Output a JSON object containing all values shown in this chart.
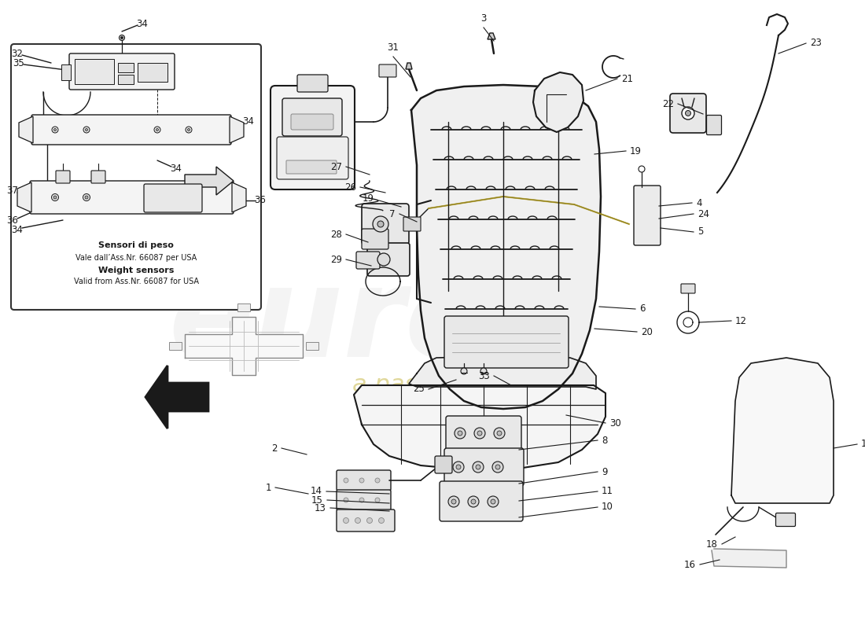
{
  "bg": "#ffffff",
  "lc": "#1a1a1a",
  "inset_texts": [
    "Sensori di peso",
    "Vale dall’Ass.Nr. 66087 per USA",
    "Weight sensors",
    "Valid from Ass.Nr. 66087 for USA"
  ],
  "wm_color": "#e0e0e0",
  "wm_subcolor": "#c8b84a"
}
